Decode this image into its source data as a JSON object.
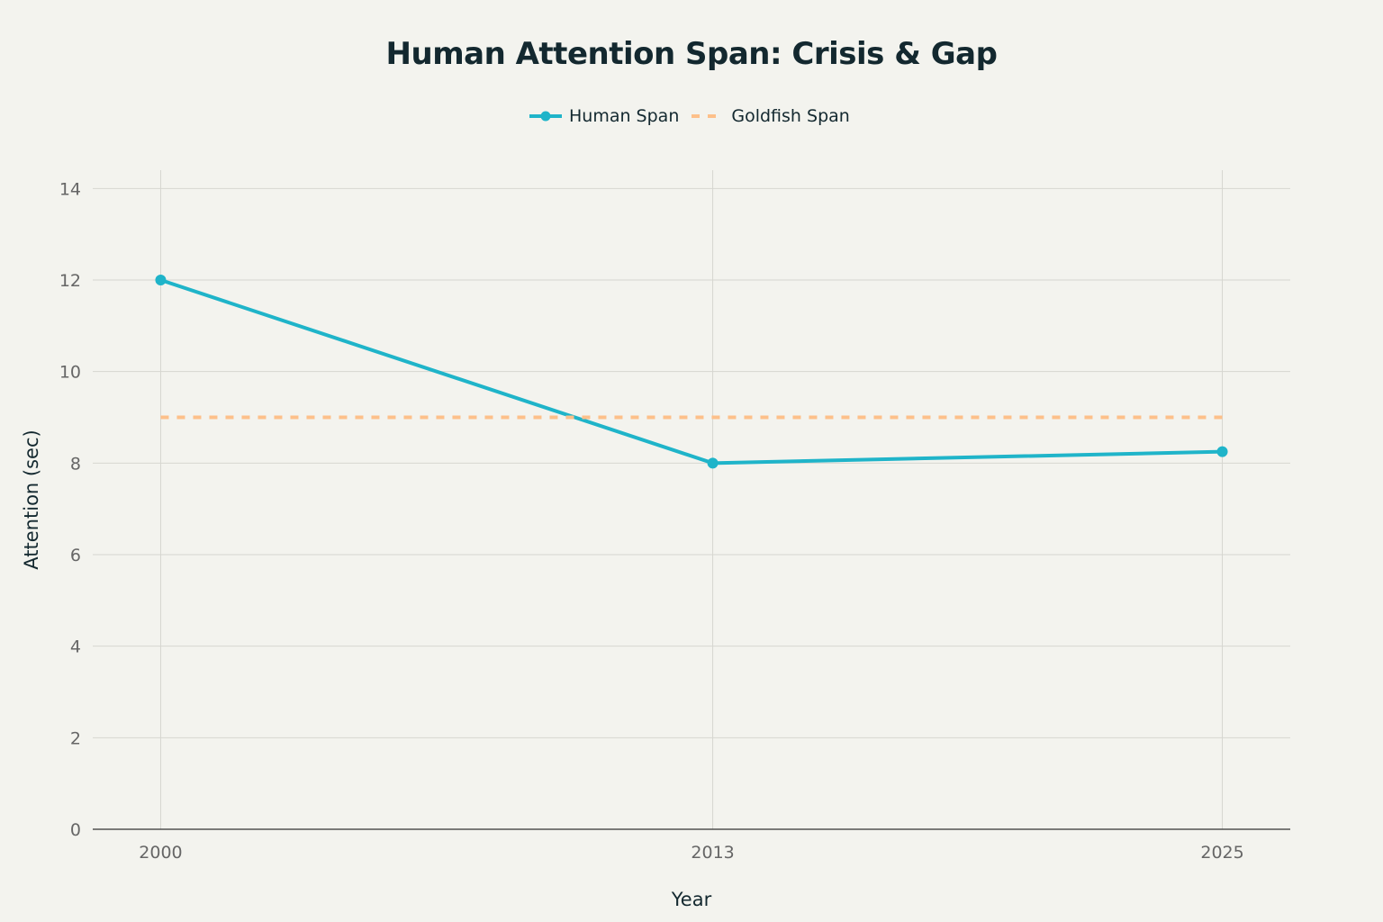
{
  "chart_data": {
    "type": "line",
    "title": "Human Attention Span: Crisis & Gap",
    "xlabel": "Year",
    "ylabel": "Attention (sec)",
    "x_ticks": [
      2000,
      2013,
      2025
    ],
    "y_ticks": [
      0,
      2,
      4,
      6,
      8,
      10,
      12,
      14
    ],
    "xlim": [
      1998.4,
      2026.6
    ],
    "ylim": [
      0,
      14.4
    ],
    "grid": true,
    "legend_position": "top-center",
    "series": [
      {
        "name": "Human Span",
        "x": [
          2000,
          2013,
          2025
        ],
        "values": [
          12,
          8,
          8.25
        ],
        "color": "#1fb4c9",
        "style": "solid",
        "markers": true
      },
      {
        "name": "Goldfish Span",
        "x": [
          2000,
          2025
        ],
        "values": [
          9,
          9
        ],
        "color": "#fdc08a",
        "style": "dashed",
        "markers": false
      }
    ]
  }
}
